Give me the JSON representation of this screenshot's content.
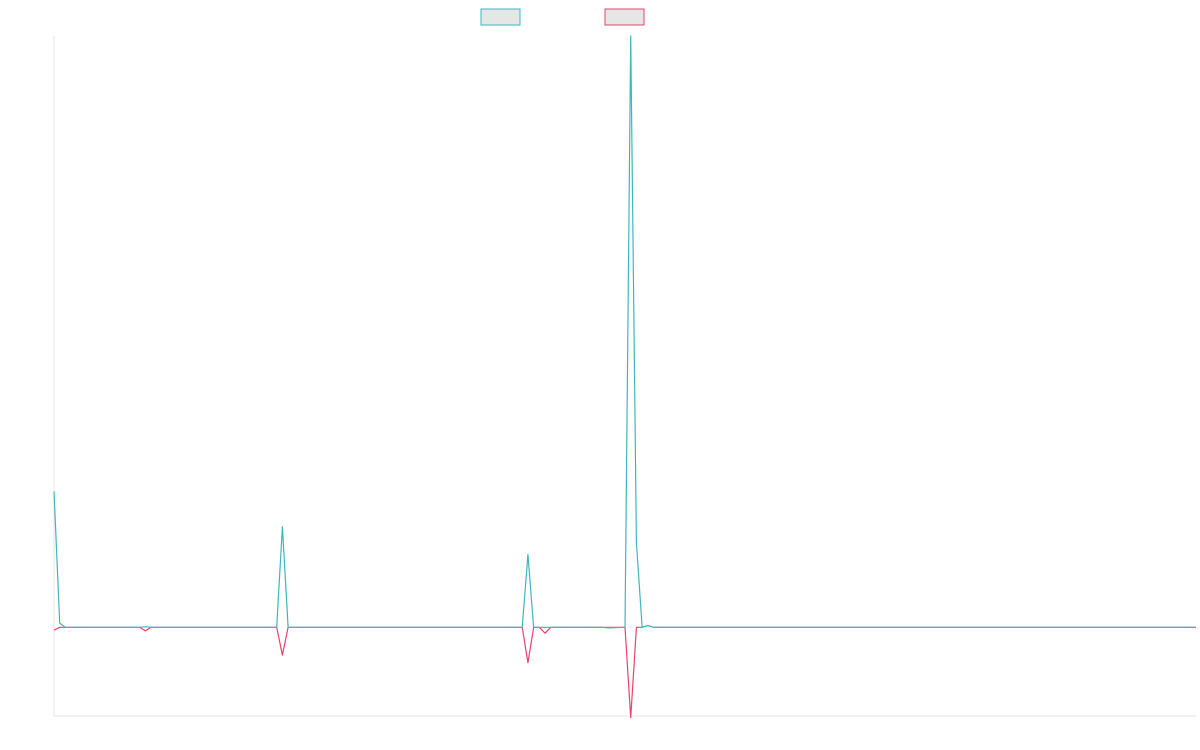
{
  "chart_data": {
    "type": "line",
    "title": "",
    "xlabel": "",
    "ylabel": "",
    "grid": false,
    "legend_placement": "top-center",
    "xlim": [
      0,
      200
    ],
    "ylim": [
      -0.15,
      1.0
    ],
    "series": [
      {
        "color": "#3fb6be",
        "points": [
          [
            0,
            0.23
          ],
          [
            1,
            0.007
          ],
          [
            2,
            0
          ],
          [
            15,
            0
          ],
          [
            16,
            0.001
          ],
          [
            17,
            0
          ],
          [
            39,
            0
          ],
          [
            40,
            0.17
          ],
          [
            41,
            0
          ],
          [
            82,
            0
          ],
          [
            83,
            0.123
          ],
          [
            84,
            0
          ],
          [
            96,
            0
          ],
          [
            97,
            -0.001
          ],
          [
            100,
            0
          ],
          [
            101,
            1.0
          ],
          [
            102,
            0.143
          ],
          [
            103,
            0
          ],
          [
            104,
            0.003
          ],
          [
            105,
            0
          ],
          [
            200,
            0
          ]
        ]
      },
      {
        "color": "#e8436b",
        "points": [
          [
            0,
            -0.005
          ],
          [
            1,
            0
          ],
          [
            2,
            0
          ],
          [
            15,
            0
          ],
          [
            16,
            -0.006
          ],
          [
            17,
            0
          ],
          [
            39,
            0
          ],
          [
            40,
            -0.047
          ],
          [
            41,
            0
          ],
          [
            82,
            0
          ],
          [
            83,
            -0.06
          ],
          [
            84,
            0
          ],
          [
            85,
            0
          ],
          [
            86,
            -0.01
          ],
          [
            87,
            0
          ],
          [
            100,
            0
          ],
          [
            101,
            -0.153
          ],
          [
            102,
            0
          ],
          [
            103,
            0
          ],
          [
            104,
            0.003
          ],
          [
            105,
            0
          ],
          [
            200,
            0
          ]
        ]
      }
    ]
  }
}
